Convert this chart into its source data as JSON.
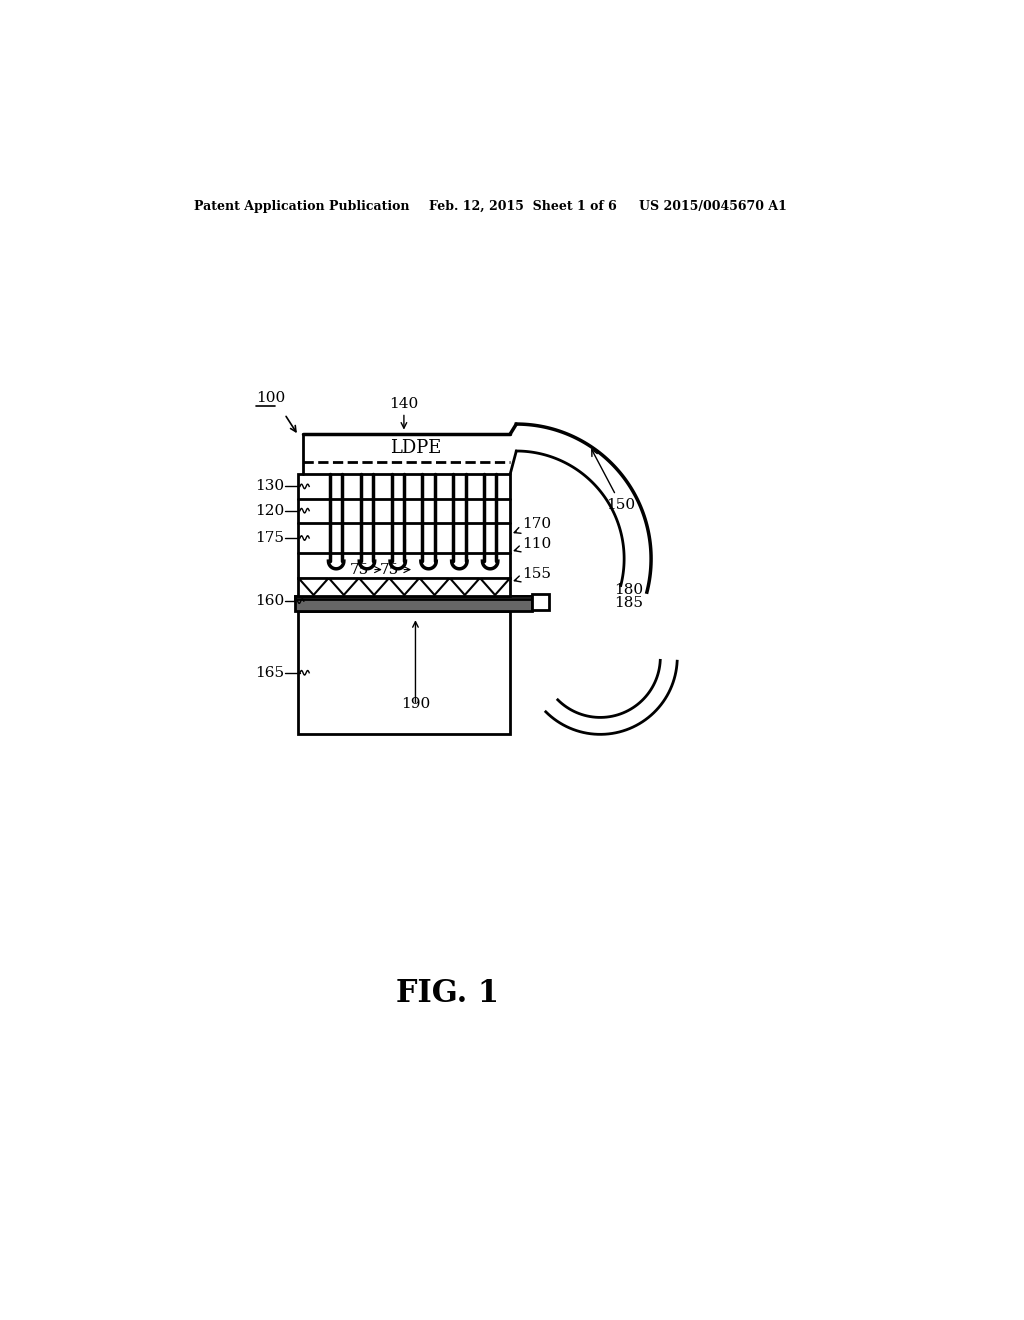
{
  "bg_color": "#ffffff",
  "header_left": "Patent Application Publication",
  "header_mid": "Feb. 12, 2015  Sheet 1 of 6",
  "header_right": "US 2015/0045670 A1",
  "fig_label": "FIG. 1",
  "label_100": "100",
  "label_140": "140",
  "label_150": "150",
  "label_130": "130",
  "label_120": "120",
  "label_175": "175",
  "label_75a": "75",
  "label_75b": "75",
  "label_170": "170",
  "label_110": "110",
  "label_155": "155",
  "label_160": "160",
  "label_165": "165",
  "label_180": "180",
  "label_185": "185",
  "label_190": "190",
  "ldpe_text": "LDPE",
  "line_width": 2.0,
  "thick_line": 2.5,
  "thin_line": 1.2,
  "label_fontsize": 11,
  "header_fontsize": 9,
  "fig_fontsize": 22,
  "ldpe_fontsize": 13
}
